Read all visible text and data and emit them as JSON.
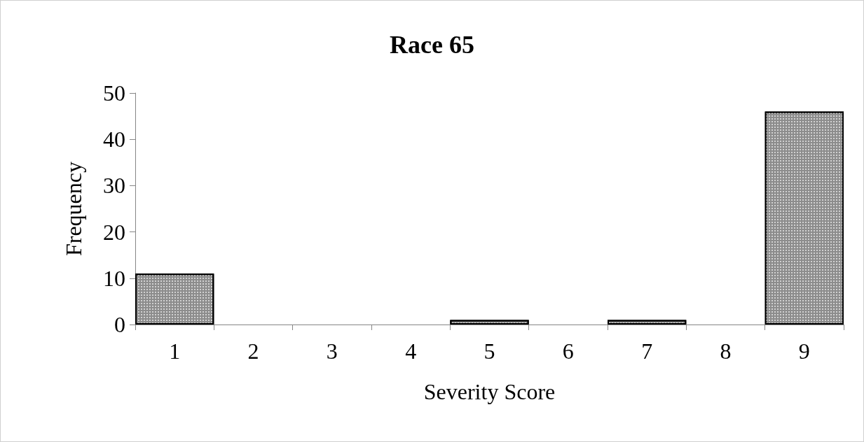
{
  "chart_data": {
    "type": "bar",
    "title": "Race 65",
    "xlabel": "Severity Score",
    "ylabel": "Frequency",
    "categories": [
      "1",
      "2",
      "3",
      "4",
      "5",
      "6",
      "7",
      "8",
      "9"
    ],
    "values": [
      11,
      0,
      0,
      0,
      1,
      0,
      1,
      0,
      46
    ],
    "color": "#8c8c8c",
    "ylim": [
      0,
      50
    ],
    "yticks": [
      0,
      10,
      20,
      30,
      40,
      50
    ],
    "grid": false
  }
}
